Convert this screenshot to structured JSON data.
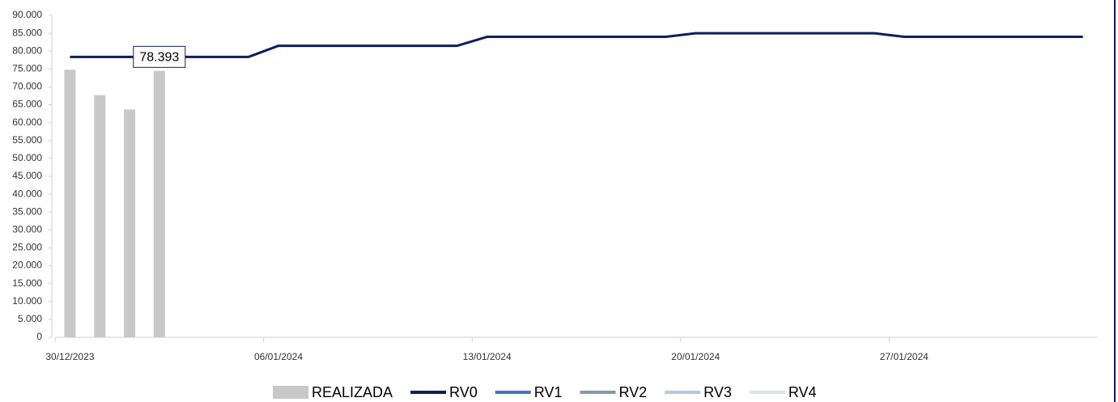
{
  "chart_data": {
    "type": "bar-line",
    "categories": [
      "30/12/2023",
      null,
      null,
      null,
      null,
      null,
      null,
      "06/01/2024",
      null,
      null,
      null,
      null,
      null,
      null,
      "13/01/2024",
      null,
      null,
      null,
      null,
      null,
      null,
      "20/01/2024",
      null,
      null,
      null,
      null,
      null,
      null,
      "27/01/2024",
      null,
      null,
      null,
      null,
      null,
      null
    ],
    "series": [
      {
        "name": "REALIZADA",
        "kind": "bar",
        "color": "#c8c8c8",
        "values": [
          74800,
          67700,
          63700,
          74500,
          null,
          null,
          null,
          null,
          null,
          null,
          null,
          null,
          null,
          null,
          null,
          null,
          null,
          null,
          null,
          null,
          null,
          null,
          null,
          null,
          null,
          null,
          null,
          null,
          null,
          null,
          null,
          null,
          null,
          null,
          null
        ]
      },
      {
        "name": "RV0",
        "kind": "line",
        "color": "#0b1f5c",
        "values": [
          78393,
          78393,
          78393,
          78393,
          78393,
          78393,
          78393,
          81500,
          81500,
          81500,
          81500,
          81500,
          81500,
          81500,
          84000,
          84000,
          84000,
          84000,
          84000,
          84000,
          84000,
          85000,
          85000,
          85000,
          85000,
          85000,
          85000,
          85000,
          84000,
          84000,
          84000,
          84000,
          84000,
          84000,
          84000
        ],
        "value_labels": [
          null,
          null,
          null,
          "78.393",
          null,
          null,
          null,
          null,
          null,
          null,
          null,
          null,
          null,
          null,
          null,
          null,
          null,
          null,
          null,
          null,
          null,
          null,
          null,
          null,
          null,
          null,
          null,
          null,
          null,
          null,
          null,
          null,
          null,
          null,
          null
        ]
      },
      {
        "name": "RV1",
        "kind": "line",
        "color": "#4472c4",
        "values": [
          null,
          null,
          null,
          null,
          null,
          null,
          null,
          null,
          null,
          null,
          null,
          null,
          null,
          null,
          null,
          null,
          null,
          null,
          null,
          null,
          null,
          null,
          null,
          null,
          null,
          null,
          null,
          null,
          null,
          null,
          null,
          null,
          null,
          null,
          null
        ]
      },
      {
        "name": "RV2",
        "kind": "line",
        "color": "#8497b0",
        "values": [
          null,
          null,
          null,
          null,
          null,
          null,
          null,
          null,
          null,
          null,
          null,
          null,
          null,
          null,
          null,
          null,
          null,
          null,
          null,
          null,
          null,
          null,
          null,
          null,
          null,
          null,
          null,
          null,
          null,
          null,
          null,
          null,
          null,
          null,
          null
        ]
      },
      {
        "name": "RV3",
        "kind": "line",
        "color": "#b4c7e7",
        "values": [
          null,
          null,
          null,
          null,
          null,
          null,
          null,
          null,
          null,
          null,
          null,
          null,
          null,
          null,
          null,
          null,
          null,
          null,
          null,
          null,
          null,
          null,
          null,
          null,
          null,
          null,
          null,
          null,
          null,
          null,
          null,
          null,
          null,
          null,
          null
        ]
      },
      {
        "name": "RV4",
        "kind": "line",
        "color": "#dae1ef",
        "values": [
          null,
          null,
          null,
          null,
          null,
          null,
          null,
          null,
          null,
          null,
          null,
          null,
          null,
          null,
          null,
          null,
          null,
          null,
          null,
          null,
          null,
          null,
          null,
          null,
          null,
          null,
          null,
          null,
          null,
          null,
          null,
          null,
          null,
          null,
          null
        ]
      }
    ],
    "ylim": [
      0,
      90000
    ],
    "yticks": [
      0,
      {
        "value": 5000,
        "label": "5.000"
      },
      {
        "value": 10000,
        "label": "10.000"
      },
      {
        "value": 15000,
        "label": "15.000"
      },
      {
        "value": 20000,
        "label": "20.000"
      },
      {
        "value": 25000,
        "label": "25.000"
      },
      {
        "value": 30000,
        "label": "30.000"
      },
      {
        "value": 35000,
        "label": "35.000"
      },
      {
        "value": 40000,
        "label": "40.000"
      },
      {
        "value": 45000,
        "label": "45.000"
      },
      {
        "value": 50000,
        "label": "50.000"
      },
      {
        "value": 55000,
        "label": "55.000"
      },
      {
        "value": 60000,
        "label": "60.000"
      },
      {
        "value": 65000,
        "label": "65.000"
      },
      {
        "value": 70000,
        "label": "70.000"
      },
      {
        "value": 75000,
        "label": "75.000"
      },
      {
        "value": 80000,
        "label": "80.000"
      },
      {
        "value": 85000,
        "label": "85.000"
      },
      {
        "value": 90000,
        "label": "90.000"
      }
    ],
    "grid": false,
    "legend": "bottom"
  }
}
